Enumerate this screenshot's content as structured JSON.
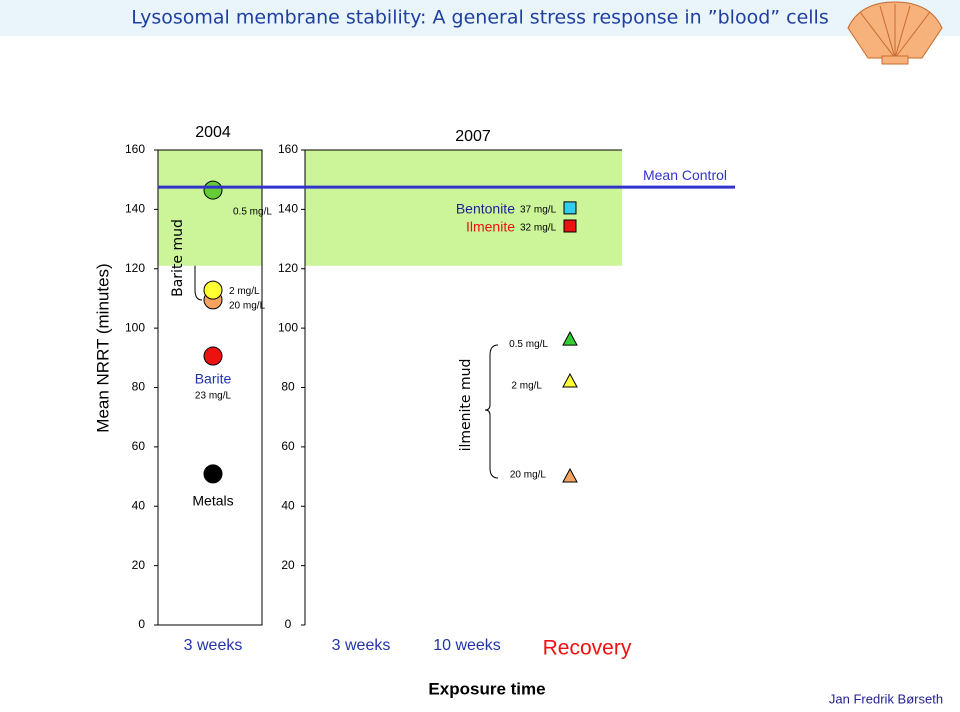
{
  "header": {
    "title": "Lysosomal membrane stability: A general stress response in ”blood” cells"
  },
  "footer": {
    "author": "Jan Fredrik Børseth"
  },
  "chart_data": [
    {
      "type": "scatter",
      "title": "2004",
      "ylabel": "Mean NRRT (minutes)",
      "group_label": "Barite mud",
      "categories": [
        "3 weeks"
      ],
      "ylim": [
        0,
        160
      ],
      "yticks": [
        0,
        20,
        40,
        60,
        80,
        100,
        120,
        140,
        160
      ],
      "control_band": [
        121,
        160
      ],
      "band_color": "#ccf59a",
      "series": [
        {
          "name": "0.5 mg/L",
          "marker": "circle",
          "color": "#66cc33",
          "values": [
            146.5
          ]
        },
        {
          "name": "2 mg/L",
          "marker": "circle",
          "color": "#ffff33",
          "values": [
            112.8
          ]
        },
        {
          "name": "20 mg/L",
          "marker": "circle",
          "color": "#f4a460",
          "values": [
            109.5
          ]
        },
        {
          "name": "Barite",
          "sub": "23 mg/L",
          "marker": "circle",
          "color": "#ee1111",
          "label_color": "#2233aa",
          "values": [
            90.6
          ]
        },
        {
          "name": "Metals",
          "marker": "circle",
          "color": "#000000",
          "values": [
            50.9
          ]
        }
      ]
    },
    {
      "type": "scatter",
      "title": "2007",
      "xlabel": "Exposure time",
      "group_label": "ilmenite mud",
      "categories": [
        "3 weeks",
        "10 weeks",
        "Recovery"
      ],
      "ylim": [
        0,
        160
      ],
      "yticks": [
        0,
        20,
        40,
        60,
        80,
        100,
        120,
        140,
        160
      ],
      "control_band": [
        121,
        160
      ],
      "band_color": "#ccf59a",
      "control_line": {
        "label": "Mean Control",
        "value": 147.5,
        "color": "#3333cc"
      },
      "series": [
        {
          "name": "Bentonite",
          "sub": "37 mg/L",
          "marker": "square",
          "color": "#33ccee",
          "label_color": "#1f1f8f",
          "values": [
            null,
            null,
            140.5
          ]
        },
        {
          "name": "Ilmenite",
          "sub": "32 mg/L",
          "marker": "square",
          "color": "#ee1111",
          "label_color": "#ee1111",
          "values": [
            null,
            null,
            134.4
          ]
        },
        {
          "name": "0.5 mg/L",
          "marker": "triangle",
          "color": "#33cc33",
          "values": [
            null,
            null,
            96.3
          ]
        },
        {
          "name": "2 mg/L",
          "marker": "triangle",
          "color": "#ffff33",
          "values": [
            null,
            null,
            82.2
          ]
        },
        {
          "name": "20 mg/L",
          "marker": "triangle",
          "color": "#f4a460",
          "values": [
            null,
            null,
            50.2
          ]
        }
      ]
    }
  ]
}
